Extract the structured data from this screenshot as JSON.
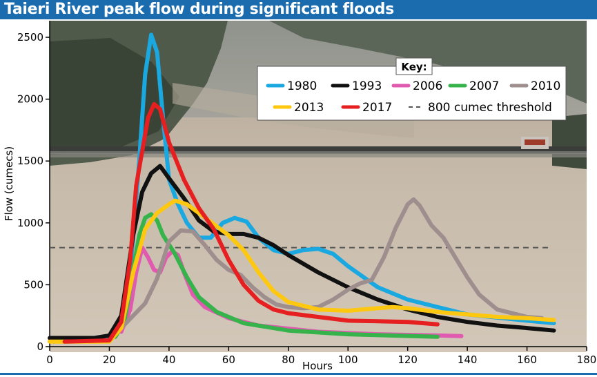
{
  "title": "Taieri River peak flow during significant floods",
  "chart_data": {
    "type": "line",
    "title": "Taieri River peak flow during significant floods",
    "xlabel": "Hours",
    "ylabel": "Flow (cumecs)",
    "xlim": [
      0,
      180
    ],
    "ylim": [
      0,
      2500
    ],
    "xticks": [
      0,
      20,
      40,
      60,
      80,
      100,
      120,
      140,
      160,
      180
    ],
    "yticks": [
      0,
      500,
      1000,
      1500,
      2000,
      2500
    ],
    "legend_title": "Key:",
    "legend_position": "top-right",
    "threshold": {
      "label": "800 cumec threshold",
      "value": 800,
      "color": "#555555"
    },
    "series": [
      {
        "name": "1980",
        "color": "#1aa8e0",
        "points": [
          [
            20,
            60
          ],
          [
            24,
            150
          ],
          [
            27,
            600
          ],
          [
            30,
            1500
          ],
          [
            32,
            2200
          ],
          [
            34,
            2520
          ],
          [
            36,
            2380
          ],
          [
            38,
            1850
          ],
          [
            40,
            1350
          ],
          [
            43,
            1150
          ],
          [
            46,
            1000
          ],
          [
            50,
            880
          ],
          [
            54,
            880
          ],
          [
            58,
            1000
          ],
          [
            62,
            1040
          ],
          [
            66,
            1010
          ],
          [
            70,
            880
          ],
          [
            75,
            780
          ],
          [
            80,
            750
          ],
          [
            85,
            780
          ],
          [
            90,
            790
          ],
          [
            95,
            750
          ],
          [
            100,
            650
          ],
          [
            110,
            480
          ],
          [
            120,
            380
          ],
          [
            140,
            260
          ],
          [
            160,
            210
          ],
          [
            169,
            190
          ]
        ]
      },
      {
        "name": "1993",
        "color": "#111111",
        "points": [
          [
            0,
            70
          ],
          [
            15,
            70
          ],
          [
            20,
            90
          ],
          [
            24,
            250
          ],
          [
            28,
            900
          ],
          [
            31,
            1250
          ],
          [
            34,
            1400
          ],
          [
            37,
            1460
          ],
          [
            40,
            1360
          ],
          [
            45,
            1200
          ],
          [
            50,
            1020
          ],
          [
            55,
            930
          ],
          [
            60,
            910
          ],
          [
            65,
            910
          ],
          [
            70,
            880
          ],
          [
            75,
            820
          ],
          [
            80,
            740
          ],
          [
            90,
            600
          ],
          [
            100,
            480
          ],
          [
            110,
            380
          ],
          [
            120,
            300
          ],
          [
            130,
            240
          ],
          [
            140,
            200
          ],
          [
            150,
            170
          ],
          [
            160,
            150
          ],
          [
            169,
            130
          ]
        ]
      },
      {
        "name": "2006",
        "color": "#e05bb0",
        "points": [
          [
            24,
            120
          ],
          [
            27,
            300
          ],
          [
            29,
            600
          ],
          [
            31,
            800
          ],
          [
            33,
            720
          ],
          [
            35,
            620
          ],
          [
            37,
            600
          ],
          [
            39,
            720
          ],
          [
            41,
            770
          ],
          [
            43,
            740
          ],
          [
            45,
            600
          ],
          [
            48,
            420
          ],
          [
            52,
            320
          ],
          [
            60,
            230
          ],
          [
            70,
            170
          ],
          [
            90,
            120
          ],
          [
            110,
            100
          ],
          [
            130,
            90
          ],
          [
            138,
            85
          ]
        ]
      },
      {
        "name": "2007",
        "color": "#36b34a",
        "points": [
          [
            22,
            80
          ],
          [
            25,
            200
          ],
          [
            28,
            620
          ],
          [
            30,
            900
          ],
          [
            32,
            1040
          ],
          [
            34,
            1070
          ],
          [
            36,
            1020
          ],
          [
            38,
            900
          ],
          [
            42,
            750
          ],
          [
            46,
            560
          ],
          [
            50,
            400
          ],
          [
            56,
            280
          ],
          [
            65,
            190
          ],
          [
            80,
            130
          ],
          [
            100,
            100
          ],
          [
            130,
            80
          ]
        ]
      },
      {
        "name": "2010",
        "color": "#9e8e8e",
        "points": [
          [
            20,
            50
          ],
          [
            24,
            150
          ],
          [
            28,
            250
          ],
          [
            32,
            350
          ],
          [
            36,
            550
          ],
          [
            40,
            850
          ],
          [
            44,
            940
          ],
          [
            48,
            930
          ],
          [
            52,
            820
          ],
          [
            56,
            700
          ],
          [
            60,
            620
          ],
          [
            64,
            580
          ],
          [
            68,
            480
          ],
          [
            72,
            400
          ],
          [
            76,
            340
          ],
          [
            80,
            320
          ],
          [
            85,
            310
          ],
          [
            90,
            320
          ],
          [
            95,
            380
          ],
          [
            100,
            460
          ],
          [
            104,
            510
          ],
          [
            108,
            540
          ],
          [
            112,
            720
          ],
          [
            116,
            960
          ],
          [
            120,
            1150
          ],
          [
            122,
            1190
          ],
          [
            124,
            1140
          ],
          [
            128,
            980
          ],
          [
            132,
            880
          ],
          [
            136,
            720
          ],
          [
            140,
            560
          ],
          [
            144,
            420
          ],
          [
            150,
            300
          ],
          [
            160,
            240
          ],
          [
            165,
            230
          ]
        ]
      },
      {
        "name": "2013",
        "color": "#ffc810",
        "points": [
          [
            0,
            40
          ],
          [
            5,
            40
          ],
          [
            20,
            40
          ],
          [
            24,
            150
          ],
          [
            28,
            600
          ],
          [
            32,
            950
          ],
          [
            36,
            1080
          ],
          [
            40,
            1150
          ],
          [
            42,
            1180
          ],
          [
            46,
            1150
          ],
          [
            50,
            1080
          ],
          [
            55,
            990
          ],
          [
            60,
            900
          ],
          [
            65,
            780
          ],
          [
            70,
            600
          ],
          [
            75,
            450
          ],
          [
            80,
            360
          ],
          [
            90,
            300
          ],
          [
            100,
            290
          ],
          [
            110,
            310
          ],
          [
            115,
            320
          ],
          [
            120,
            310
          ],
          [
            130,
            280
          ],
          [
            140,
            260
          ],
          [
            150,
            240
          ],
          [
            160,
            230
          ],
          [
            169,
            215
          ]
        ]
      },
      {
        "name": "2017",
        "color": "#e62020",
        "points": [
          [
            5,
            40
          ],
          [
            20,
            50
          ],
          [
            24,
            200
          ],
          [
            27,
            700
          ],
          [
            29,
            1300
          ],
          [
            31,
            1580
          ],
          [
            33,
            1850
          ],
          [
            35,
            1960
          ],
          [
            37,
            1920
          ],
          [
            40,
            1650
          ],
          [
            45,
            1350
          ],
          [
            50,
            1120
          ],
          [
            55,
            950
          ],
          [
            60,
            700
          ],
          [
            65,
            500
          ],
          [
            70,
            370
          ],
          [
            75,
            300
          ],
          [
            80,
            270
          ],
          [
            90,
            240
          ],
          [
            100,
            210
          ],
          [
            110,
            205
          ],
          [
            120,
            200
          ],
          [
            125,
            190
          ],
          [
            130,
            180
          ]
        ]
      }
    ]
  }
}
